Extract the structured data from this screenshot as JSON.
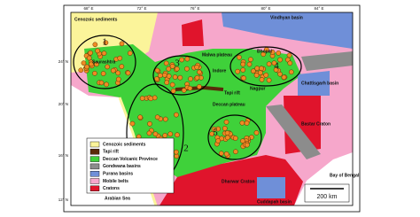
{
  "map": {
    "lon_ticks": [
      "68° E",
      "72° E",
      "76° E",
      "80° E",
      "84° E"
    ],
    "lat_ticks": [
      "24° N",
      "20° N",
      "16° N",
      "12° N"
    ],
    "labels": [
      "Cenozoic sediments",
      "Saurashtra",
      "Malwa plateau",
      "Vindhyan basin",
      "Indore",
      "Bhopal",
      "Tapi rift",
      "Nagpur",
      "Deccan plateau",
      "Chattisgarh basin",
      "Bastar Craton",
      "Dharwar Craton",
      "Cuddapah basin",
      "Arabian Sea",
      "Bay of Bengal"
    ],
    "zones": [
      "1",
      "2",
      "3",
      "4",
      "5"
    ],
    "legend": [
      "Cenozoic sediments",
      "Tapi rift",
      "Deccan Volcanic Province",
      "Gondwana basins",
      "Purana basins",
      "Mobile belts",
      "Cratons"
    ],
    "scale": "200 km"
  }
}
